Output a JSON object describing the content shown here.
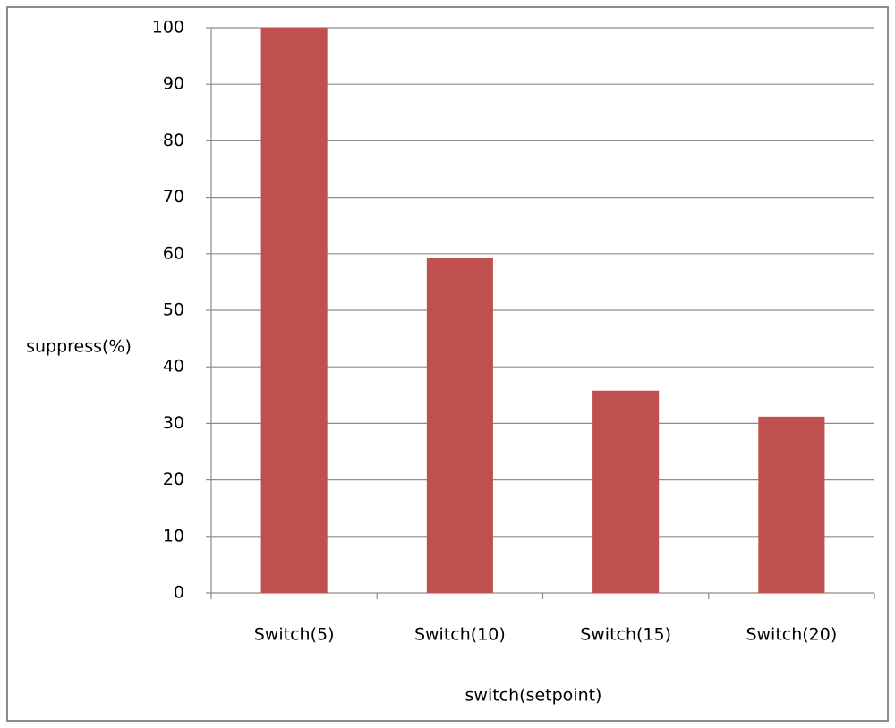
{
  "chart_data": {
    "type": "bar",
    "categories": [
      "Switch(5)",
      "Switch(10)",
      "Switch(15)",
      "Switch(20)"
    ],
    "values": [
      100,
      59.3,
      35.8,
      31.2
    ],
    "color": "#c0504d",
    "y_label": "suppress(%)",
    "x_label": "switch(setpoint)",
    "ylim": [
      0,
      100
    ],
    "yticks": [
      0,
      10,
      20,
      30,
      40,
      50,
      60,
      70,
      80,
      90,
      100
    ],
    "grid": true
  }
}
